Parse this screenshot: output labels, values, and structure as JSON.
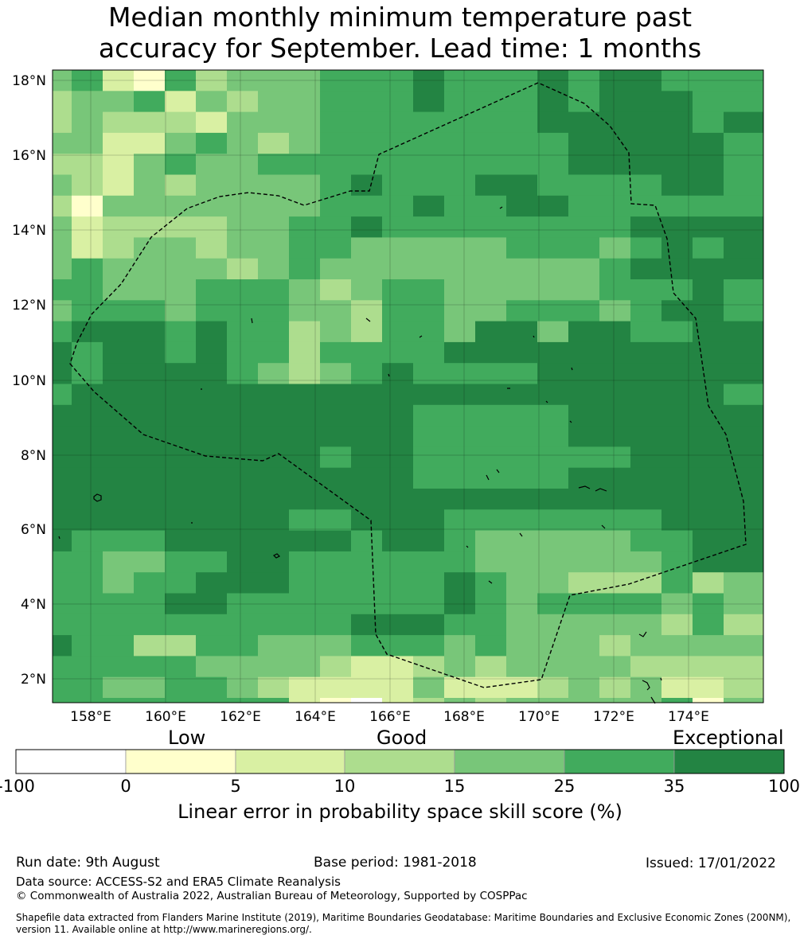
{
  "title_line1": "Median monthly minimum temperature past",
  "title_line2": "accuracy for September. Lead time: 1 months",
  "map": {
    "lon_labels": [
      "158°E",
      "160°E",
      "162°E",
      "164°E",
      "166°E",
      "168°E",
      "170°E",
      "172°E",
      "174°E"
    ],
    "lat_labels": [
      "18°N",
      "16°N",
      "14°N",
      "12°N",
      "10°N",
      "8°N",
      "6°N",
      "4°N",
      "2°N"
    ]
  },
  "colorbar": {
    "categories": [
      "Low",
      "Good",
      "Exceptional"
    ],
    "ticks": [
      "-100",
      "0",
      "5",
      "10",
      "15",
      "25",
      "35",
      "100"
    ],
    "colors": [
      "#ffffff",
      "#ffffcc",
      "#d9f0a3",
      "#addd8e",
      "#78c679",
      "#41ab5d",
      "#238443"
    ],
    "title": "Linear error in probability space skill score (%)"
  },
  "footer": {
    "run_date": "Run date: 9th August",
    "base_period": "Base period: 1981-2018",
    "issued": "Issued: 17/01/2022",
    "data_source": "Data source: ACCESS-S2 and ERA5 Climate Reanalysis",
    "copyright": "© Commonwealth of Australia 2022, Australian Bureau of Meteorology, Supported by COSPPac",
    "shapefile": "Shapefile data extracted from Flanders Marine Institute (2019), Maritime Boundaries Geodatabase: Maritime Boundaries and Exclusive Economic Zones (200NM), version 11. Available online at http://www.marineregions.org/."
  }
}
